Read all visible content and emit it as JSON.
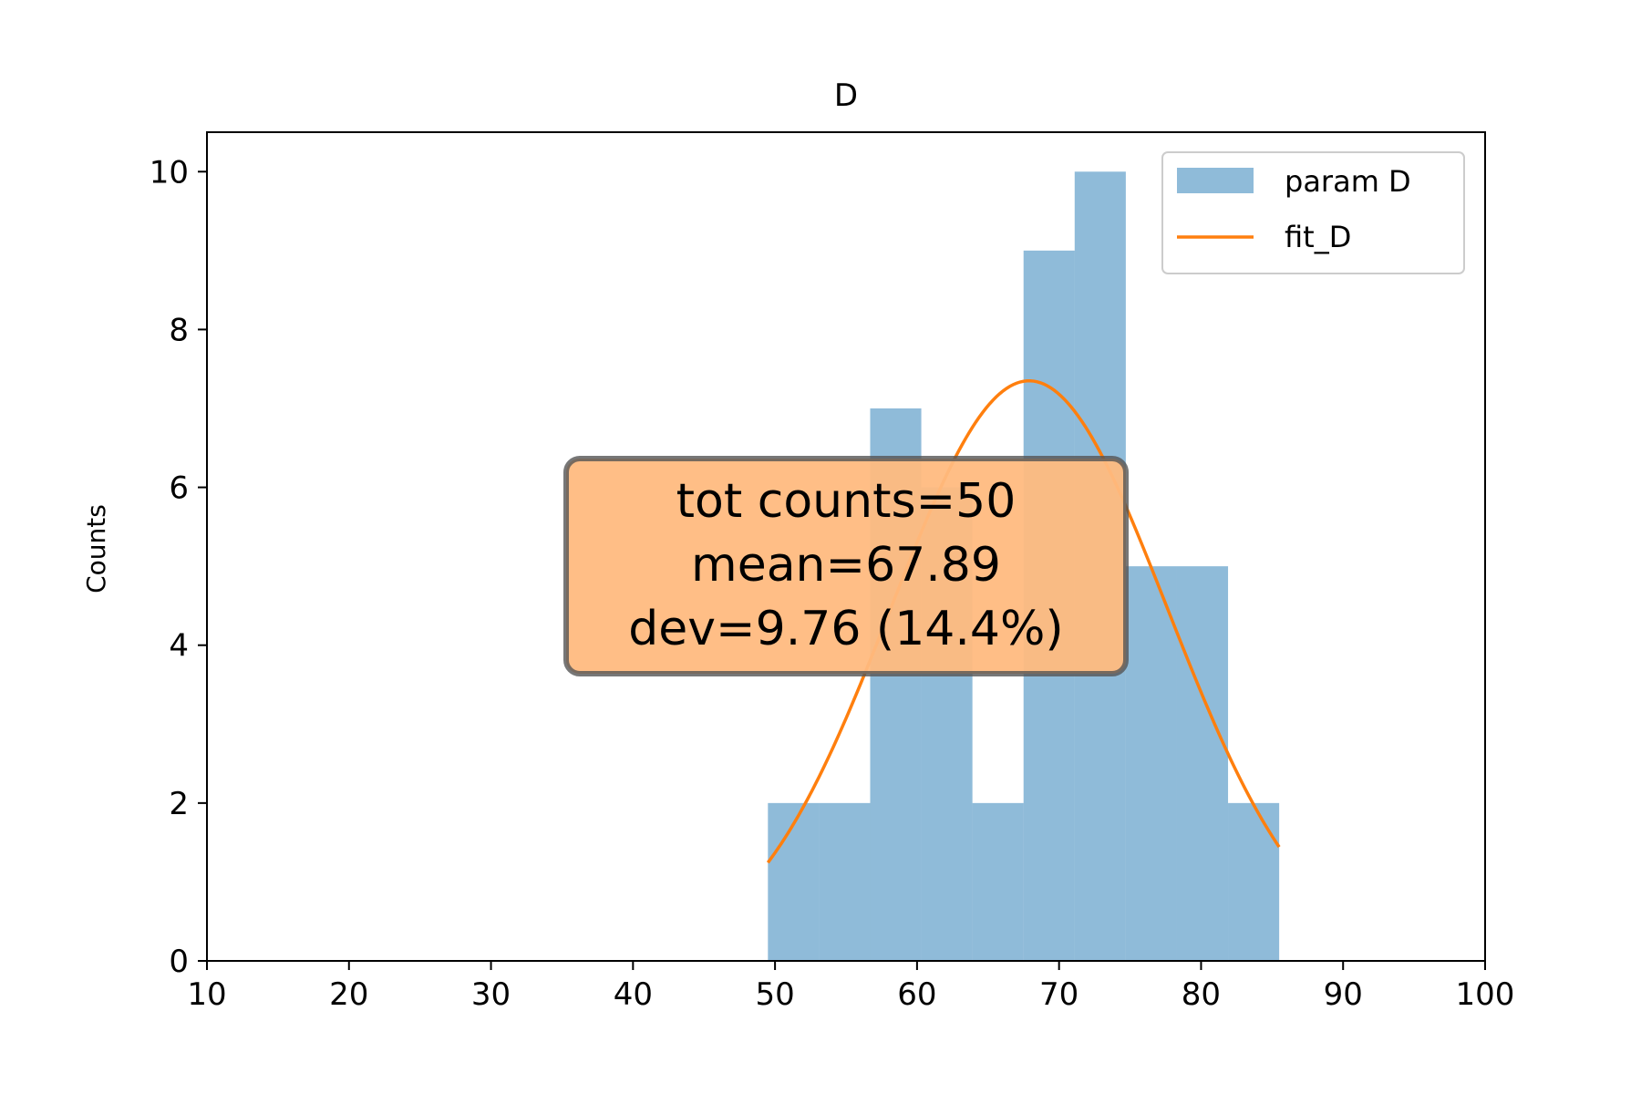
{
  "chart_data": {
    "type": "bar",
    "title": "D",
    "xlabel": "",
    "ylabel": "Counts",
    "xlim": [
      10,
      100
    ],
    "ylim": [
      0,
      10.5
    ],
    "xticks": [
      10,
      20,
      30,
      40,
      50,
      60,
      70,
      80,
      90,
      100
    ],
    "yticks": [
      0,
      2,
      4,
      6,
      8,
      10
    ],
    "grid": false,
    "legend_position": "upper-right",
    "bins": [
      {
        "x0": 49.5,
        "x1": 53.1,
        "count": 2
      },
      {
        "x0": 53.1,
        "x1": 56.7,
        "count": 2
      },
      {
        "x0": 56.7,
        "x1": 60.3,
        "count": 7
      },
      {
        "x0": 60.3,
        "x1": 63.9,
        "count": 6
      },
      {
        "x0": 63.9,
        "x1": 67.5,
        "count": 2
      },
      {
        "x0": 67.5,
        "x1": 71.1,
        "count": 9
      },
      {
        "x0": 71.1,
        "x1": 74.7,
        "count": 10
      },
      {
        "x0": 74.7,
        "x1": 78.3,
        "count": 5
      },
      {
        "x0": 78.3,
        "x1": 81.9,
        "count": 5
      },
      {
        "x0": 81.9,
        "x1": 85.5,
        "count": 2
      }
    ],
    "series": [
      {
        "name": "param D",
        "kind": "histogram",
        "color": "#1f77b4",
        "alpha": 0.5
      },
      {
        "name": "fit_D",
        "kind": "gaussian-fit",
        "color": "#ff7f0e",
        "amplitude": 7.35,
        "mean": 67.89,
        "sigma": 9.76,
        "x_range": [
          49.5,
          85.5
        ]
      }
    ],
    "annotation": {
      "lines": [
        "tot counts=50",
        "mean=67.89",
        "dev=9.76 (14.4%)"
      ],
      "facecolor": "#ffbb80",
      "edgecolor": "#555555"
    }
  }
}
